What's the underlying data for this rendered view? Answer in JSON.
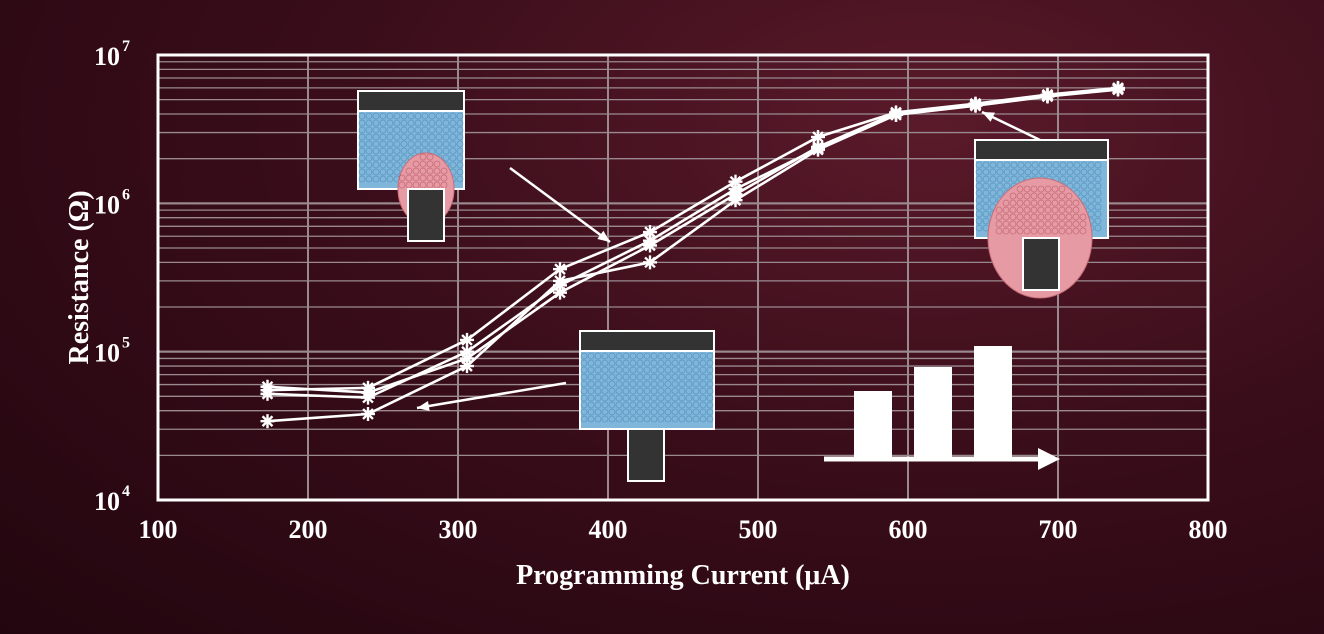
{
  "chart_data": {
    "type": "line",
    "title": "",
    "xlabel": "Programming Current (μA)",
    "ylabel": "Resistance (Ω)",
    "xlim": [
      100,
      800
    ],
    "ylim": [
      10000,
      10000000
    ],
    "y_scale": "log",
    "grid": true,
    "x_ticks": [
      "100",
      "200",
      "300",
      "400",
      "500",
      "600",
      "700",
      "800"
    ],
    "y_ticks": [
      {
        "base": "10",
        "exp": "4",
        "value": 10000
      },
      {
        "base": "10",
        "exp": "5",
        "value": 100000
      },
      {
        "base": "10",
        "exp": "6",
        "value": 1000000
      },
      {
        "base": "10",
        "exp": "7",
        "value": 10000000
      }
    ],
    "marker": "asterisk",
    "series": [
      {
        "x": [
          173,
          240,
          306,
          368,
          428,
          485,
          540,
          592,
          645,
          693,
          740
        ],
        "values": [
          55000,
          57000,
          120000,
          360000,
          640000,
          1400000,
          2800000,
          4100000,
          4700000,
          5400000,
          6000000
        ]
      },
      {
        "x": [
          173,
          240,
          306,
          368,
          428,
          485,
          540,
          592,
          645,
          693,
          740
        ],
        "values": [
          52000,
          49000,
          100000,
          280000,
          560000,
          1250000,
          2350000,
          3950000,
          4600000,
          5300000,
          5900000
        ]
      },
      {
        "x": [
          173,
          240,
          306,
          368,
          428,
          485,
          540,
          592,
          645,
          693,
          740
        ],
        "values": [
          58000,
          53000,
          90000,
          250000,
          520000,
          1150000,
          2400000,
          4050000,
          4650000,
          5350000,
          5950000
        ]
      },
      {
        "x": [
          173,
          240,
          306,
          368,
          428,
          485,
          540,
          592,
          645,
          693,
          740
        ],
        "values": [
          34000,
          38000,
          80000,
          300000,
          400000,
          1050000,
          2300000,
          3950000,
          4550000,
          5250000,
          5850000
        ]
      }
    ],
    "colors": {
      "line": "#ffffff",
      "grid": "#9a8a90",
      "crystal": "#7fb6da",
      "amorphous": "#e69aa3",
      "electrode": "#333333"
    }
  }
}
